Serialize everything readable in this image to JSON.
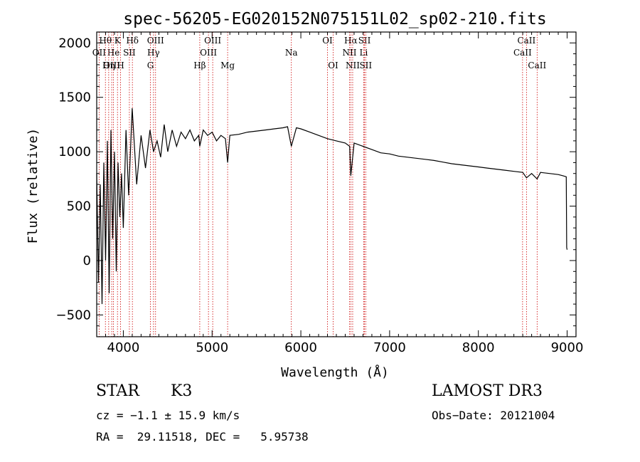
{
  "chart_data": {
    "type": "line",
    "title": "spec-56205-EG020152N075151L02_sp02-210.fits",
    "xlabel": "Wavelength (Å)",
    "ylabel": "Flux (relative)",
    "xlim": [
      3700,
      9100
    ],
    "ylim": [
      -700,
      2100
    ],
    "x_ticks": [
      4000,
      5000,
      6000,
      7000,
      8000,
      9000
    ],
    "y_ticks": [
      -500,
      0,
      500,
      1000,
      1500,
      2000
    ],
    "series": [
      {
        "name": "spectrum",
        "x": [
          3700,
          3720,
          3740,
          3760,
          3780,
          3800,
          3820,
          3840,
          3860,
          3880,
          3900,
          3920,
          3940,
          3960,
          3980,
          4000,
          4030,
          4060,
          4100,
          4150,
          4200,
          4250,
          4300,
          4340,
          4380,
          4420,
          4460,
          4500,
          4550,
          4600,
          4650,
          4700,
          4750,
          4800,
          4850,
          4861,
          4900,
          4950,
          5000,
          5050,
          5100,
          5150,
          5175,
          5200,
          5300,
          5400,
          5500,
          5600,
          5700,
          5800,
          5850,
          5893,
          5950,
          6000,
          6100,
          6200,
          6300,
          6400,
          6500,
          6550,
          6563,
          6600,
          6700,
          6800,
          6900,
          7000,
          7100,
          7200,
          7300,
          7400,
          7500,
          7600,
          7700,
          7800,
          7900,
          8000,
          8100,
          8200,
          8300,
          8400,
          8500,
          8542,
          8600,
          8662,
          8700,
          8800,
          8900,
          8950,
          8990,
          8995,
          9000
        ],
        "values": [
          800,
          -200,
          700,
          -400,
          900,
          0,
          1100,
          -300,
          1200,
          200,
          1000,
          -100,
          900,
          400,
          800,
          300,
          1200,
          600,
          1400,
          700,
          1150,
          850,
          1200,
          1000,
          1100,
          950,
          1250,
          1000,
          1200,
          1050,
          1180,
          1120,
          1200,
          1100,
          1150,
          1050,
          1200,
          1150,
          1180,
          1100,
          1150,
          1120,
          900,
          1150,
          1160,
          1180,
          1190,
          1200,
          1210,
          1220,
          1230,
          1050,
          1220,
          1210,
          1180,
          1150,
          1120,
          1100,
          1080,
          1050,
          780,
          1080,
          1050,
          1020,
          990,
          980,
          960,
          950,
          940,
          930,
          920,
          905,
          890,
          880,
          870,
          860,
          850,
          840,
          830,
          820,
          810,
          760,
          800,
          750,
          810,
          800,
          790,
          780,
          770,
          120,
          100
        ]
      }
    ],
    "spectral_lines": [
      {
        "name": "Hθ",
        "wavelength": 3798,
        "row": 0
      },
      {
        "name": "OII",
        "wavelength": 3727,
        "row": 1
      },
      {
        "name": "OIII",
        "wavelength": 3869,
        "row": 2
      },
      {
        "name": "K",
        "wavelength": 3934,
        "row": 0
      },
      {
        "name": "He",
        "wavelength": 3889,
        "row": 1
      },
      {
        "name": "Hη",
        "wavelength": 3835,
        "row": 2
      },
      {
        "name": "SII",
        "wavelength": 4068,
        "row": 1
      },
      {
        "name": "H",
        "wavelength": 3969,
        "row": 2
      },
      {
        "name": "Hδ",
        "wavelength": 4102,
        "row": 0
      },
      {
        "name": "OIII",
        "wavelength": 4363,
        "row": 0
      },
      {
        "name": "Hγ",
        "wavelength": 4340,
        "row": 1
      },
      {
        "name": "G",
        "wavelength": 4305,
        "row": 2
      },
      {
        "name": "Hβ",
        "wavelength": 4861,
        "row": 2
      },
      {
        "name": "OIII",
        "wavelength": 5007,
        "row": 0
      },
      {
        "name": "OIII",
        "wavelength": 4959,
        "row": 1
      },
      {
        "name": "Mg",
        "wavelength": 5175,
        "row": 2
      },
      {
        "name": "Na",
        "wavelength": 5893,
        "row": 1
      },
      {
        "name": "OI",
        "wavelength": 6300,
        "row": 0
      },
      {
        "name": "OI",
        "wavelength": 6364,
        "row": 2
      },
      {
        "name": "Hα",
        "wavelength": 6563,
        "row": 0
      },
      {
        "name": "NII",
        "wavelength": 6548,
        "row": 1
      },
      {
        "name": "NII",
        "wavelength": 6584,
        "row": 2
      },
      {
        "name": "SII",
        "wavelength": 6717,
        "row": 0
      },
      {
        "name": "Li",
        "wavelength": 6708,
        "row": 1
      },
      {
        "name": "SII",
        "wavelength": 6731,
        "row": 2
      },
      {
        "name": "CaII",
        "wavelength": 8542,
        "row": 0
      },
      {
        "name": "CaII",
        "wavelength": 8498,
        "row": 1
      },
      {
        "name": "CaII",
        "wavelength": 8662,
        "row": 2
      }
    ]
  },
  "info": {
    "class_label": "STAR",
    "subclass": "K3",
    "survey": "LAMOST DR3",
    "cz": "cz = −1.1 ± 15.9 km/s",
    "obs_date": "Obs−Date: 20121004",
    "coords": "RA =  29.11518, DEC =   5.95738"
  },
  "colors": {
    "spectrum": "#000000",
    "line_marker": "#cc0000",
    "axes": "#000000"
  }
}
